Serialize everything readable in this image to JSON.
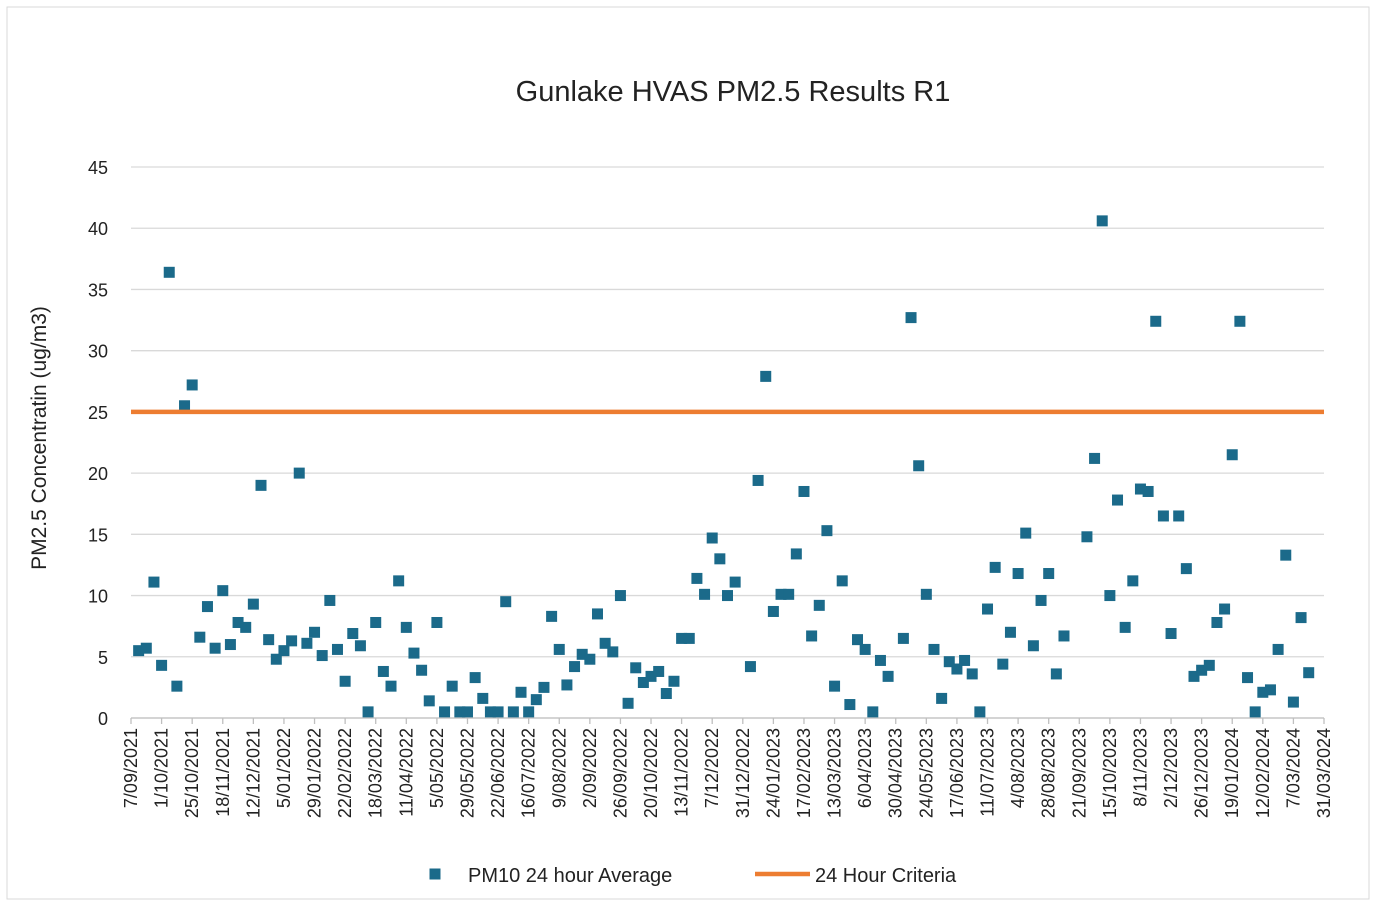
{
  "chart_data": {
    "type": "scatter",
    "title": "Gunlake HVAS PM2.5 Results R1",
    "y_label": "PM2.5 Concentratin (ug/m3)",
    "xlim": [
      "7/09/2021",
      "31/03/2024"
    ],
    "xticks": [
      "7/09/2021",
      "1/10/2021",
      "25/10/2021",
      "18/11/2021",
      "12/12/2021",
      "5/01/2022",
      "29/01/2022",
      "22/02/2022",
      "18/03/2022",
      "11/04/2022",
      "5/05/2022",
      "29/05/2022",
      "22/06/2022",
      "16/07/2022",
      "9/08/2022",
      "2/09/2022",
      "26/09/2022",
      "20/10/2022",
      "13/11/2022",
      "7/12/2022",
      "31/12/2022",
      "24/01/2023",
      "17/02/2023",
      "13/03/2023",
      "6/04/2023",
      "30/04/2023",
      "24/05/2023",
      "17/06/2023",
      "11/07/2023",
      "4/08/2023",
      "28/08/2023",
      "21/09/2023",
      "15/10/2023",
      "8/11/2023",
      "2/12/2023",
      "26/12/2023",
      "19/01/2024",
      "12/02/2024",
      "7/03/2024",
      "31/03/2024"
    ],
    "ylim": [
      0,
      45
    ],
    "yticks": [
      0,
      5,
      10,
      15,
      20,
      25,
      30,
      35,
      40,
      45
    ],
    "grid": true,
    "legend": "bottom",
    "series": [
      {
        "name": "PM10 24 hour Average",
        "type": "scatter",
        "color": "#1b6a8a",
        "x": [
          "13/09/2021",
          "19/09/2021",
          "25/09/2021",
          "1/10/2021",
          "7/10/2021",
          "13/10/2021",
          "19/10/2021",
          "25/10/2021",
          "31/10/2021",
          "6/11/2021",
          "12/11/2021",
          "18/11/2021",
          "24/11/2021",
          "30/11/2021",
          "6/12/2021",
          "12/12/2021",
          "18/12/2021",
          "24/12/2021",
          "30/12/2021",
          "5/01/2022",
          "11/01/2022",
          "17/01/2022",
          "23/01/2022",
          "29/01/2022",
          "4/02/2022",
          "10/02/2022",
          "16/02/2022",
          "22/02/2022",
          "28/02/2022",
          "6/03/2022",
          "12/03/2022",
          "18/03/2022",
          "24/03/2022",
          "30/03/2022",
          "5/04/2022",
          "11/04/2022",
          "17/04/2022",
          "23/04/2022",
          "29/04/2022",
          "5/05/2022",
          "11/05/2022",
          "17/05/2022",
          "23/05/2022",
          "29/05/2022",
          "4/06/2022",
          "10/06/2022",
          "16/06/2022",
          "22/06/2022",
          "28/06/2022",
          "4/07/2022",
          "10/07/2022",
          "16/07/2022",
          "22/07/2022",
          "28/07/2022",
          "3/08/2022",
          "9/08/2022",
          "15/08/2022",
          "21/08/2022",
          "27/08/2022",
          "2/09/2022",
          "8/09/2022",
          "14/09/2022",
          "20/09/2022",
          "26/09/2022",
          "2/10/2022",
          "8/10/2022",
          "14/10/2022",
          "20/10/2022",
          "26/10/2022",
          "1/11/2022",
          "7/11/2022",
          "13/11/2022",
          "19/11/2022",
          "25/11/2022",
          "1/12/2022",
          "7/12/2022",
          "13/12/2022",
          "19/12/2022",
          "25/12/2022",
          "6/01/2023",
          "12/01/2023",
          "18/01/2023",
          "24/01/2023",
          "30/01/2023",
          "5/02/2023",
          "11/02/2023",
          "17/02/2023",
          "23/02/2023",
          "1/03/2023",
          "7/03/2023",
          "13/03/2023",
          "19/03/2023",
          "25/03/2023",
          "31/03/2023",
          "6/04/2023",
          "12/04/2023",
          "18/04/2023",
          "24/04/2023",
          "6/05/2023",
          "12/05/2023",
          "18/05/2023",
          "24/05/2023",
          "30/05/2023",
          "5/06/2023",
          "11/06/2023",
          "17/06/2023",
          "23/06/2023",
          "29/06/2023",
          "5/07/2023",
          "11/07/2023",
          "17/07/2023",
          "23/07/2023",
          "29/07/2023",
          "4/08/2023",
          "10/08/2023",
          "16/08/2023",
          "22/08/2023",
          "28/08/2023",
          "3/09/2023",
          "9/09/2023",
          "27/09/2023",
          "3/10/2023",
          "9/10/2023",
          "15/10/2023",
          "21/10/2023",
          "27/10/2023",
          "2/11/2023",
          "8/11/2023",
          "14/11/2023",
          "20/11/2023",
          "26/11/2023",
          "2/12/2023",
          "8/12/2023",
          "14/12/2023",
          "20/12/2023",
          "26/12/2023",
          "1/01/2024",
          "7/01/2024",
          "13/01/2024",
          "19/01/2024",
          "25/01/2024",
          "31/01/2024",
          "6/02/2024",
          "12/02/2024",
          "18/02/2024",
          "24/02/2024",
          "1/03/2024",
          "7/03/2024",
          "13/03/2024",
          "19/03/2024"
        ],
        "values": [
          5.5,
          5.7,
          11.1,
          4.3,
          36.4,
          2.6,
          25.5,
          27.2,
          6.6,
          9.1,
          5.7,
          10.4,
          6.0,
          7.8,
          7.4,
          9.3,
          19.0,
          6.4,
          4.8,
          5.5,
          6.3,
          20.0,
          6.1,
          7.0,
          5.1,
          9.6,
          5.6,
          3.0,
          6.9,
          5.9,
          0.5,
          7.8,
          3.8,
          2.6,
          11.2,
          7.4,
          5.3,
          3.9,
          1.4,
          7.8,
          0.5,
          2.6,
          0.5,
          0.5,
          3.3,
          1.6,
          0.5,
          0.5,
          9.5,
          0.5,
          2.1,
          0.5,
          1.5,
          2.5,
          8.3,
          5.6,
          2.7,
          4.2,
          5.2,
          4.8,
          8.5,
          6.1,
          5.4,
          10.0,
          1.2,
          4.1,
          2.9,
          3.4,
          3.8,
          2.0,
          3.0,
          6.5,
          6.5,
          11.4,
          10.1,
          14.7,
          13.0,
          10.0,
          11.1,
          4.2,
          19.4,
          27.9,
          8.7,
          10.1,
          10.1,
          13.4,
          18.5,
          6.7,
          9.2,
          15.3,
          2.6,
          11.2,
          1.1,
          6.4,
          5.6,
          0.5,
          4.7,
          3.4,
          6.5,
          32.7,
          20.6,
          10.1,
          5.6,
          1.6,
          4.6,
          4.0,
          4.7,
          3.6,
          0.5,
          8.9,
          12.3,
          4.4,
          7.0,
          11.8,
          15.1,
          5.9,
          9.6,
          11.8,
          3.6,
          6.7,
          14.8,
          21.2,
          40.6,
          10.0,
          17.8,
          7.4,
          11.2,
          18.7,
          18.5,
          32.4,
          16.5,
          6.9,
          16.5,
          12.2,
          3.4,
          3.9,
          4.3,
          7.8,
          8.9,
          21.5,
          32.4,
          3.3,
          0.5,
          2.1,
          2.3,
          5.6,
          13.3,
          1.3,
          8.2,
          3.7
        ]
      },
      {
        "name": "24 Hour Criteria",
        "type": "line",
        "color": "#ed7d31",
        "x": [
          "7/09/2021",
          "31/03/2024"
        ],
        "values": [
          25,
          25
        ]
      }
    ]
  }
}
